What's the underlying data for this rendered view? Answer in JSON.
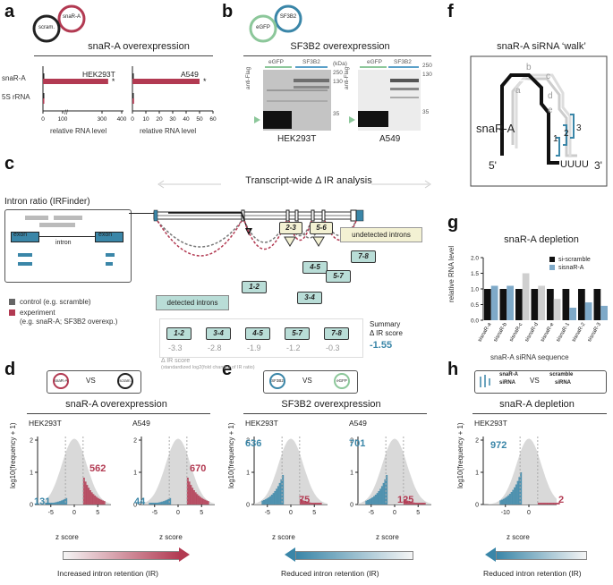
{
  "panel_labels": {
    "a": "a",
    "b": "b",
    "c": "c",
    "d": "d",
    "e": "e",
    "f": "f",
    "g": "g",
    "h": "h"
  },
  "panel_a": {
    "plasmid1": "snaR-A",
    "plasmid2": "scram.",
    "title": "snaR-A overexpression",
    "row_labels": [
      "snaR-A",
      "5S rRNA"
    ],
    "xlabel": "relative RNA level",
    "cell1": "HEK293T",
    "cell2": "A549",
    "ticks1": [
      "0",
      "100",
      "300",
      "400"
    ],
    "ticks2": [
      "0",
      "10",
      "20",
      "30",
      "40",
      "50",
      "60"
    ],
    "star": "*"
  },
  "panel_b": {
    "plasmid1": "SF3B2",
    "plasmid2": "eGFP",
    "title": "SF3B2 overexpression",
    "lane1": "eGFP",
    "lane2": "SF3B2",
    "kda": "(kDa)",
    "markers1": [
      "250",
      "130",
      "35"
    ],
    "markers2": [
      "250",
      "130",
      "35"
    ],
    "antibody": "anti-Flag",
    "cell1": "HEK293T",
    "cell2": "A549"
  },
  "panel_c": {
    "title": "Transcript-wide Δ IR analysis",
    "box_title": "Intron ratio (IRFinder)",
    "exon": "exon",
    "intron": "intron",
    "legend_control": "control (e.g. scramble)",
    "legend_experiment": "experiment",
    "legend_experiment2": "(e.g. snaR-A; SF3B2 overexp.)",
    "detected": "detected introns",
    "undetected": "undetected introns",
    "introns": [
      "1-2",
      "2-3",
      "3-4",
      "4-5",
      "5-6",
      "5-7",
      "7-8"
    ],
    "summary_introns": [
      "1-2",
      "3-4",
      "4-5",
      "5-7",
      "7-8"
    ],
    "summary_scores": [
      "-3.3",
      "-2.8",
      "-1.9",
      "-1.2",
      "-0.3"
    ],
    "summary_label": "Summary",
    "summary_label2": "Δ IR score",
    "summary_value": "-1.55",
    "score_label": "Δ IR score",
    "score_note": "(standardized log2(fold change) of IR ratio)"
  },
  "panel_f": {
    "title": "snaR-A siRNA ‘walk’",
    "rna": "snaR-A",
    "five": "5'",
    "three": "3'",
    "tail": "UUUU",
    "grey_letters": [
      "a",
      "b",
      "c",
      "d",
      "e"
    ],
    "numbers": [
      "1",
      "2",
      "3"
    ]
  },
  "panel_g": {
    "title": "snaR-A depletion",
    "legend": [
      "si-scramble",
      "sisnaR-A"
    ],
    "ylabel": "relative RNA level",
    "xlabel": "snaR-A siRNA sequence",
    "yticks": [
      "0.0",
      "0.5",
      "1.0",
      "1.5",
      "2.0"
    ]
  },
  "panel_d": {
    "plasmid1": "snaR-A",
    "vs": "VS",
    "plasmid2": "scram.",
    "title": "snaR-A overexpression",
    "cell1": "HEK293T",
    "cell2": "A549",
    "low1": "131",
    "high1": "562",
    "low2": "44",
    "high2": "670",
    "xlabel": "z score",
    "ylabel": "log10(frequency + 1)",
    "xticks": [
      "-5",
      "0",
      "5"
    ],
    "yticks": [
      "0",
      "1",
      "2"
    ],
    "arrow_label": "Increased intron retention (IR)"
  },
  "panel_e": {
    "plasmid1": "SF3B2",
    "vs": "VS",
    "plasmid2": "eGFP",
    "title": "SF3B2 overexpression",
    "cell1": "HEK293T",
    "cell2": "A549",
    "low1": "636",
    "high1": "75",
    "low2": "701",
    "high2": "125",
    "xlabel": "z score",
    "ylabel": "log10(frequency + 1)",
    "xticks": [
      "-5",
      "0",
      "5"
    ],
    "yticks": [
      "0",
      "1",
      "2"
    ],
    "arrow_label": "Reduced intron retention (IR)"
  },
  "panel_h": {
    "si1a": "snaR-A",
    "si1b": "siRNA",
    "vs": "VS",
    "si2a": "scramble",
    "si2b": "siRNA",
    "title": "snaR-A depletion",
    "cell1": "HEK293T",
    "low1": "972",
    "high1": "2",
    "xlabel": "z score",
    "ylabel": "log10(frequency + 1)",
    "xticks": [
      "-10",
      "0"
    ],
    "yticks": [
      "0",
      "1",
      "2"
    ],
    "arrow_label": "Reduced intron retention (IR)"
  },
  "chart_data": [
    {
      "type": "bar",
      "title": "snaR-A overexpression (HEK293T)",
      "orientation": "horizontal",
      "categories": [
        "snaR-A",
        "5S rRNA"
      ],
      "series": [
        {
          "name": "scram.",
          "values": [
            1,
            1
          ]
        },
        {
          "name": "snaR-A",
          "values": [
            340,
            2
          ]
        }
      ],
      "xlabel": "relative RNA level",
      "xlim": [
        0,
        420
      ]
    },
    {
      "type": "bar",
      "title": "snaR-A overexpression (A549)",
      "orientation": "horizontal",
      "categories": [
        "snaR-A",
        "5S rRNA"
      ],
      "series": [
        {
          "name": "scram.",
          "values": [
            1,
            1
          ]
        },
        {
          "name": "snaR-A",
          "values": [
            50,
            1.2
          ]
        }
      ],
      "xlabel": "relative RNA level",
      "xlim": [
        0,
        60
      ]
    },
    {
      "type": "bar",
      "title": "snaR-A depletion",
      "categories": [
        "sisnaR-a",
        "sisnaR-b",
        "sisnaR-c",
        "sisnaR-d",
        "sisnaR-e",
        "sisnaR-1",
        "sisnaR-2",
        "sisnaR-3"
      ],
      "series": [
        {
          "name": "si-scramble",
          "values": [
            1.0,
            1.0,
            1.0,
            1.0,
            1.0,
            1.0,
            1.0,
            1.0
          ]
        },
        {
          "name": "sisnaR-A",
          "values": [
            1.1,
            1.1,
            1.5,
            1.1,
            0.68,
            0.4,
            0.57,
            0.46
          ]
        }
      ],
      "xlabel": "snaR-A siRNA sequence",
      "ylabel": "relative RNA level",
      "ylim": [
        0,
        2
      ]
    }
  ],
  "colors": {
    "teal": "#3a86a8",
    "red": "#b23a52",
    "green": "#8cc79a",
    "blue": "#5aa0c8",
    "grey": "#cfcfcf"
  }
}
